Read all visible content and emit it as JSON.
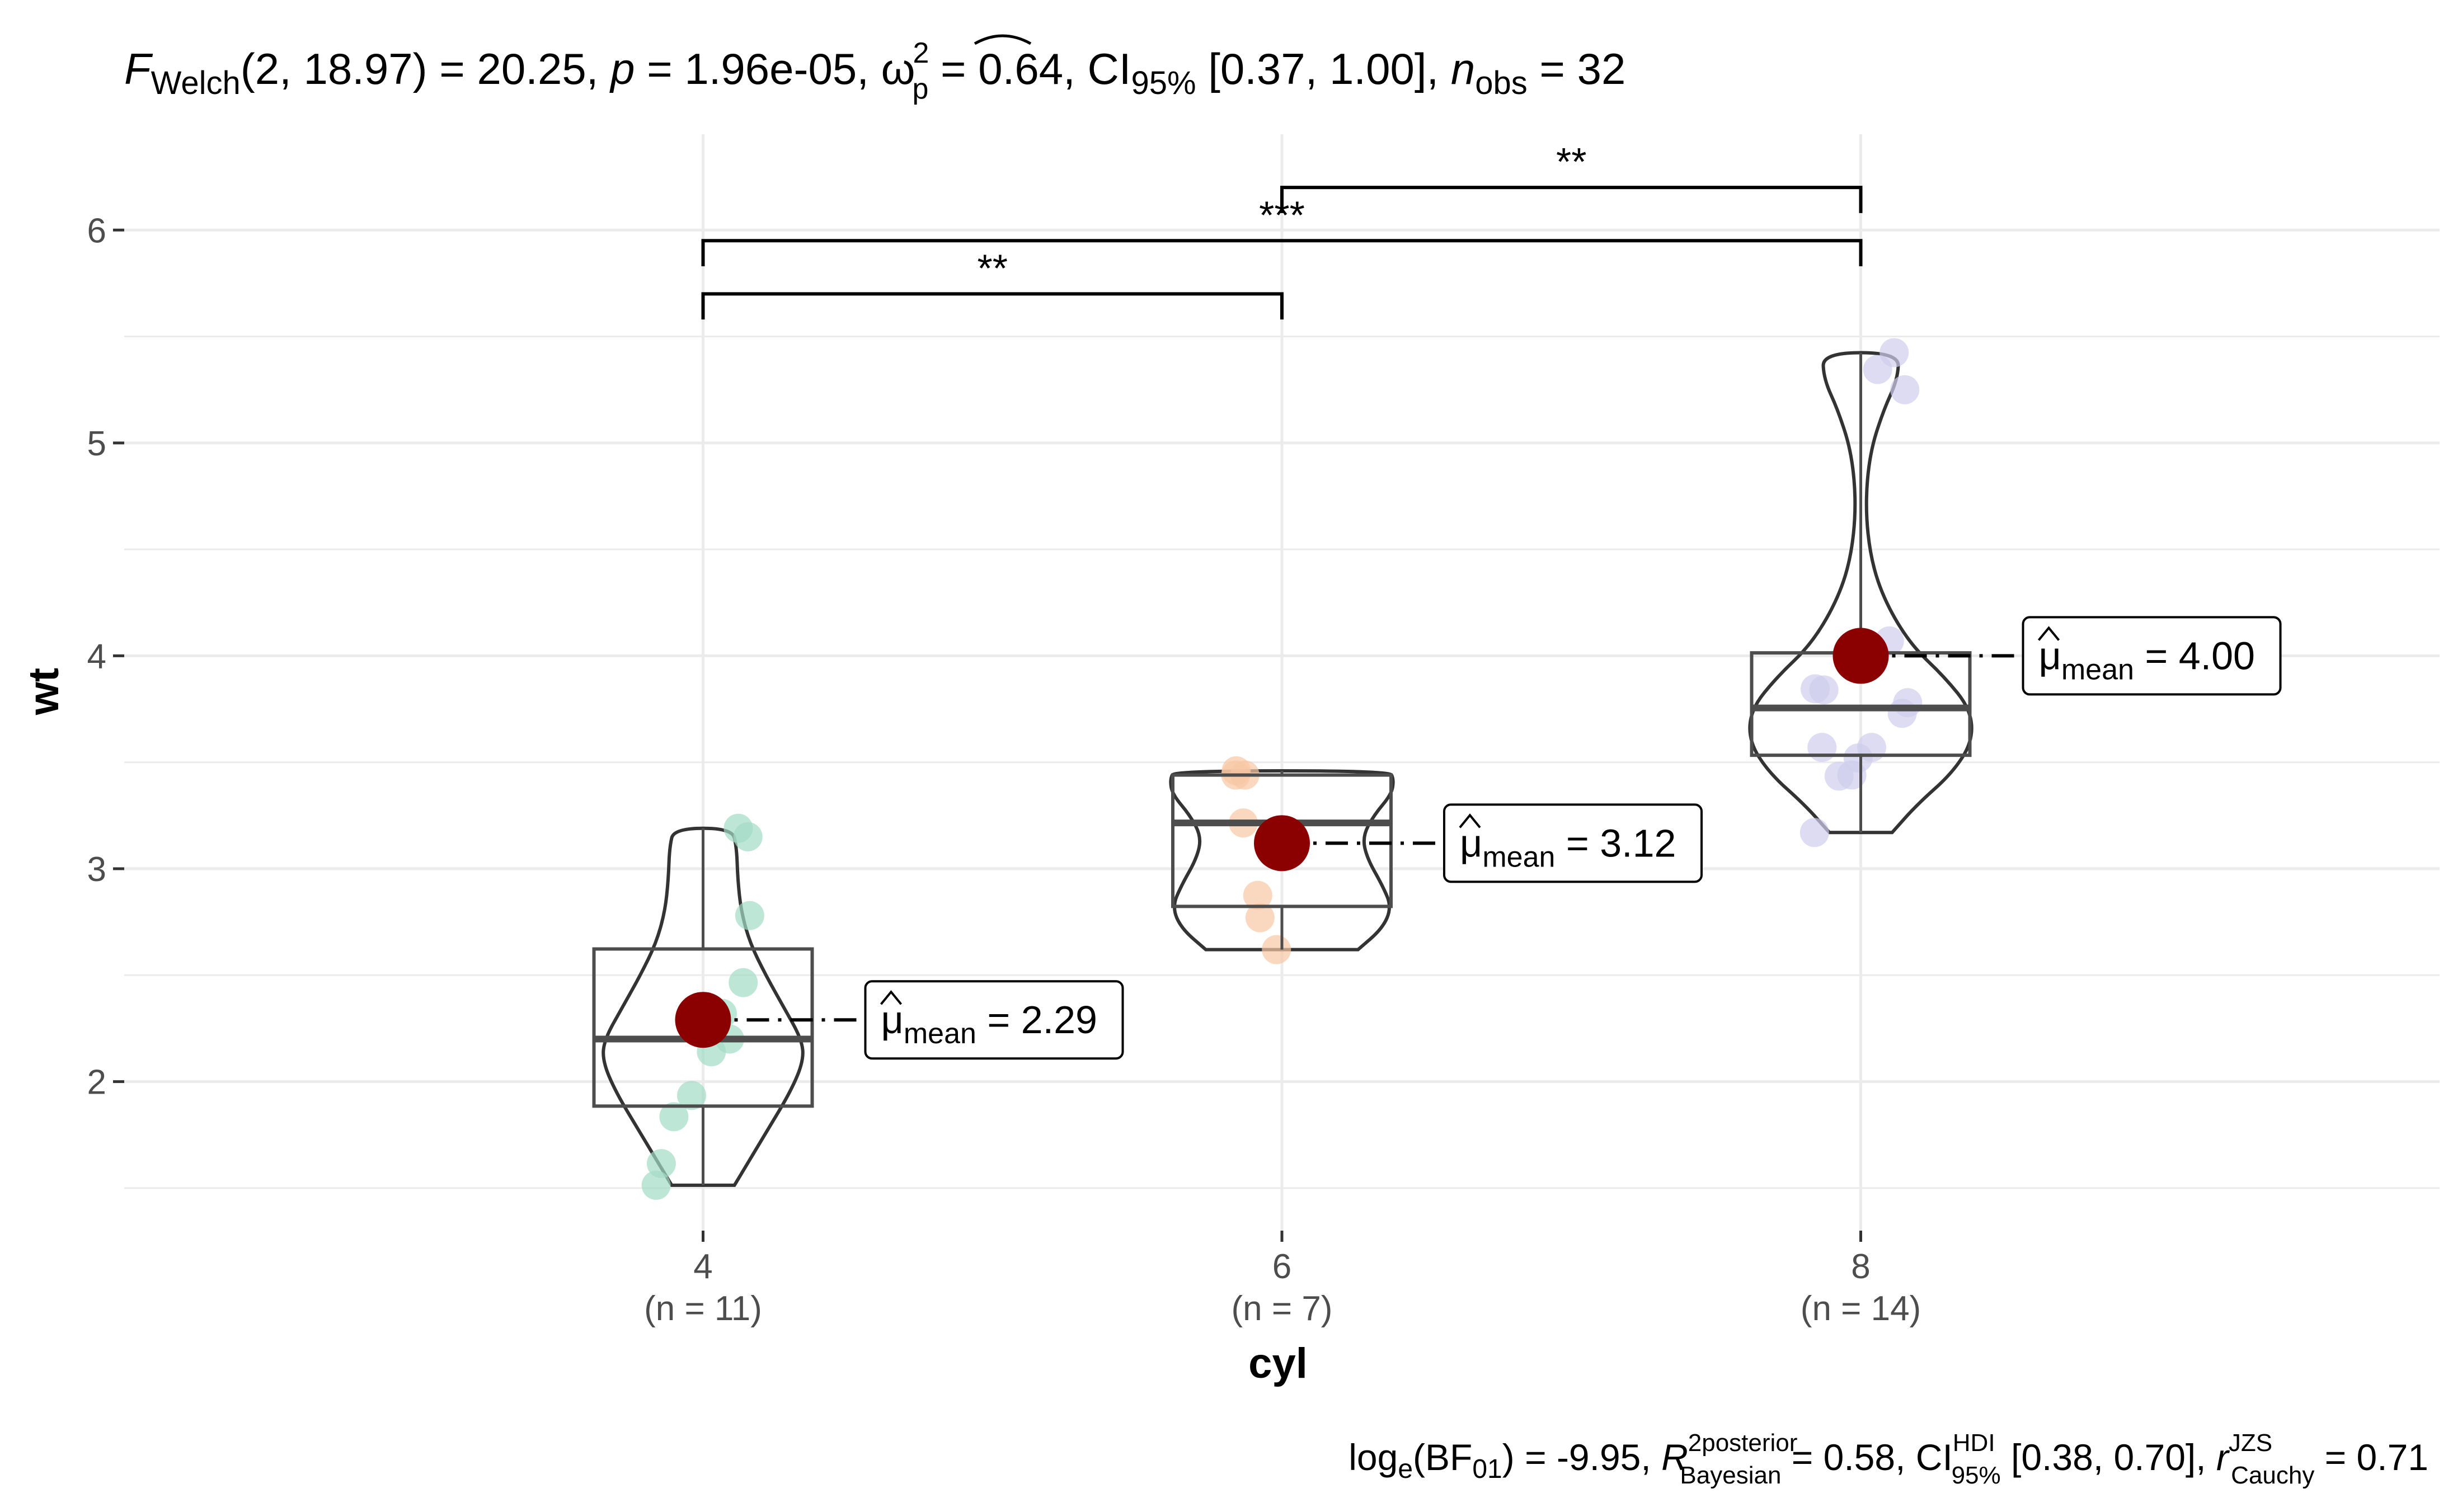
{
  "chart_data": {
    "type": "violin-box",
    "xlabel": "cyl",
    "ylabel": "wt",
    "ylim": [
      1.3,
      6.45
    ],
    "yticks": [
      2,
      3,
      4,
      5,
      6
    ],
    "grid": true,
    "subtitle": {
      "F": "F",
      "F_sub": "Welch",
      "F_args": "(2, 18.97)",
      "F_val": " = 20.25, ",
      "p": "p",
      "p_val": " = 1.96e-05, ",
      "omega": "ω",
      "omega_sup": "2",
      "omega_sub": "p",
      "omega_val": " = 0.64, ",
      "ci": "CI",
      "ci_sub": "95%",
      "ci_val": " [0.37, 1.00], ",
      "n": "n",
      "n_sub": "obs",
      "n_val": " = 32"
    },
    "caption": {
      "log": "log",
      "log_sub": "e",
      "bf": "(BF",
      "bf_sub": "01",
      "bf_val": ") = -9.95, ",
      "r2": "R",
      "r2_sup": "2",
      "r2_sup2": "posterior",
      "r2_sub": "Bayesian",
      "r2_val": " = 0.58, ",
      "ci": "CI",
      "ci_sup": "HDI",
      "ci_sub": "95%",
      "ci_val": " [0.38, 0.70], ",
      "r": "r",
      "r_sup": "JZS",
      "r_sub": "Cauchy",
      "r_val": " = 0.71"
    },
    "groups": [
      {
        "category": "4",
        "count_label": "(n = 11)",
        "color": "#a3dbc6",
        "points": [
          2.32,
          3.19,
          3.15,
          2.78,
          2.465,
          2.2,
          2.14,
          1.935,
          1.835,
          1.615,
          1.513
        ],
        "box": {
          "q1": 1.885,
          "median": 2.2,
          "q3": 2.623,
          "lower": 1.513,
          "upper": 3.19
        },
        "mean": 2.29,
        "mean_label_main": "μ",
        "mean_label_sub": "mean",
        "mean_label_val": " = 2.29",
        "violin": [
          [
            1.513,
            0.28
          ],
          [
            1.6,
            0.38
          ],
          [
            1.75,
            0.55
          ],
          [
            1.95,
            0.78
          ],
          [
            2.1,
            0.9
          ],
          [
            2.2,
            0.88
          ],
          [
            2.35,
            0.72
          ],
          [
            2.5,
            0.56
          ],
          [
            2.65,
            0.42
          ],
          [
            2.8,
            0.34
          ],
          [
            2.95,
            0.31
          ],
          [
            3.1,
            0.3
          ],
          [
            3.19,
            0.26
          ]
        ]
      },
      {
        "category": "6",
        "count_label": "(n = 7)",
        "color": "#f8c7a4",
        "points": [
          2.62,
          2.875,
          3.215,
          3.44,
          3.46,
          3.44,
          2.77
        ],
        "box": {
          "q1": 2.823,
          "median": 3.215,
          "q3": 3.44,
          "lower": 2.62,
          "upper": 3.46
        },
        "mean": 3.12,
        "mean_label_main": "μ",
        "mean_label_sub": "mean",
        "mean_label_val": " = 3.12",
        "violin": [
          [
            2.62,
            0.68
          ],
          [
            2.72,
            0.9
          ],
          [
            2.82,
            0.98
          ],
          [
            2.92,
            0.9
          ],
          [
            3.05,
            0.76
          ],
          [
            3.15,
            0.72
          ],
          [
            3.25,
            0.82
          ],
          [
            3.35,
            0.98
          ],
          [
            3.42,
            1.0
          ],
          [
            3.46,
            0.96
          ]
        ]
      },
      {
        "category": "8",
        "count_label": "(n = 14)",
        "color": "#cfcdec",
        "points": [
          3.44,
          3.57,
          4.07,
          3.73,
          3.78,
          5.25,
          5.424,
          5.345,
          3.52,
          3.435,
          3.84,
          3.845,
          3.17,
          3.57
        ],
        "box": {
          "q1": 3.533,
          "median": 3.755,
          "q3": 4.014,
          "lower": 3.17,
          "upper": 5.424
        },
        "mean": 4.0,
        "mean_label_main": "μ",
        "mean_label_sub": "mean",
        "mean_label_val": " = 4.00",
        "violin": [
          [
            3.17,
            0.28
          ],
          [
            3.3,
            0.5
          ],
          [
            3.45,
            0.82
          ],
          [
            3.6,
            1.0
          ],
          [
            3.75,
            0.98
          ],
          [
            3.9,
            0.75
          ],
          [
            4.05,
            0.45
          ],
          [
            4.25,
            0.22
          ],
          [
            4.45,
            0.09
          ],
          [
            4.7,
            0.04
          ],
          [
            4.95,
            0.08
          ],
          [
            5.15,
            0.2
          ],
          [
            5.3,
            0.33
          ],
          [
            5.424,
            0.34
          ]
        ]
      }
    ],
    "comparisons": [
      {
        "from": "4",
        "to": "6",
        "label": "**",
        "y": 5.7
      },
      {
        "from": "4",
        "to": "8",
        "label": "***",
        "y": 5.95
      },
      {
        "from": "6",
        "to": "8",
        "label": "**",
        "y": 6.2
      }
    ],
    "mean_point_color": "#8b0000"
  }
}
